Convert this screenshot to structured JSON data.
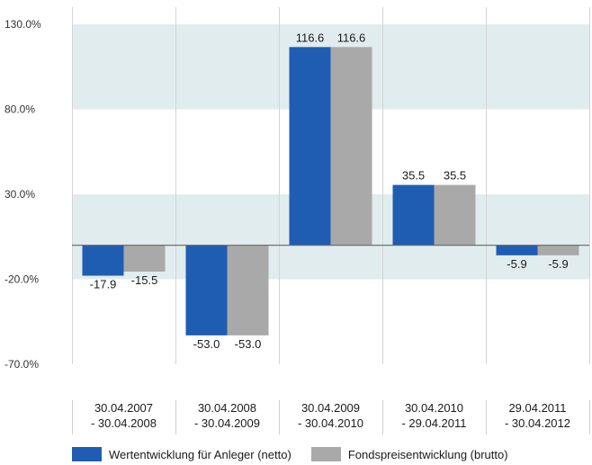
{
  "chart_data": {
    "type": "bar",
    "categories": [
      [
        "30.04.2007",
        "- 30.04.2008"
      ],
      [
        "30.04.2008",
        "- 30.04.2009"
      ],
      [
        "30.04.2009",
        "- 30.04.2010"
      ],
      [
        "30.04.2010",
        "- 29.04.2011"
      ],
      [
        "29.04.2011",
        "- 30.04.2012"
      ]
    ],
    "series": [
      {
        "name": "Wertentwicklung für Anleger (netto)",
        "color": "#1f5db3",
        "values": [
          -17.9,
          -53.0,
          116.6,
          35.5,
          -5.9
        ],
        "labels": [
          "-17.9",
          "-53.0",
          "116.6",
          "35.5",
          "-5.9"
        ]
      },
      {
        "name": "Fondspreisentwicklung (brutto)",
        "color": "#a9a9a9",
        "values": [
          -15.5,
          -53.0,
          116.6,
          35.5,
          -5.9
        ],
        "labels": [
          "-15.5",
          "-53.0",
          "116.6",
          "35.5",
          "-5.9"
        ]
      }
    ],
    "yticks": [
      130,
      80,
      30,
      -20,
      -70
    ],
    "ytick_labels": [
      "130.0%",
      "80.0%",
      "30.0%",
      "-20.0%",
      "-70.0%"
    ],
    "ylim": [
      -70,
      130
    ],
    "bands": [
      [
        80,
        130
      ],
      [
        -20,
        30
      ]
    ],
    "band_color": "#e1ecef",
    "grid": true,
    "legend_position": "bottom"
  }
}
